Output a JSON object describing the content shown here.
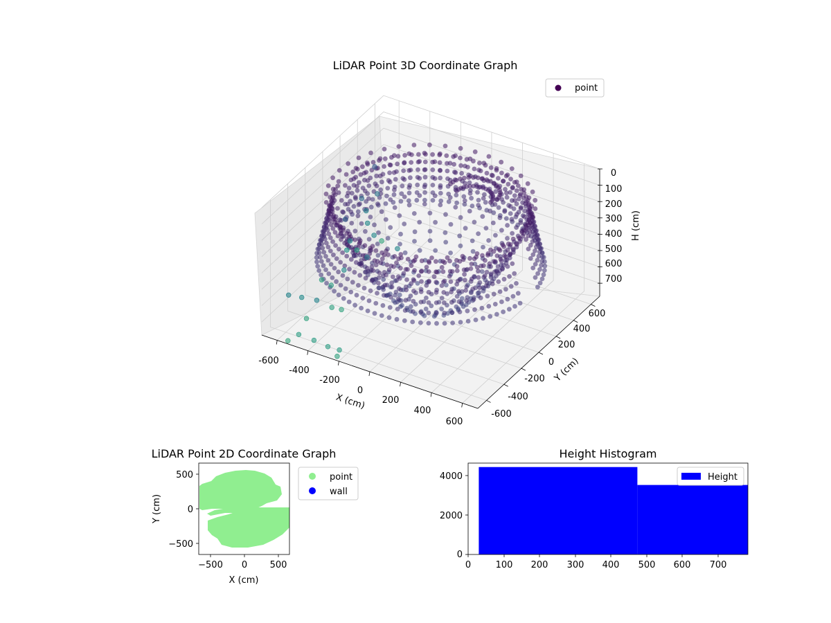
{
  "chart_data": [
    {
      "type": "scatter3d",
      "title": "LiDAR Point 3D Coordinate Graph",
      "xlabel": "X (cm)",
      "ylabel": "Y (cm)",
      "zlabel": "H (cm)",
      "xticks": [
        "-600",
        "-400",
        "-200",
        "0",
        "200",
        "400",
        "600"
      ],
      "yticks": [
        "-600",
        "-400",
        "-200",
        "0",
        "200",
        "400",
        "600"
      ],
      "zticks": [
        "0",
        "100",
        "200",
        "300",
        "400",
        "500",
        "600",
        "700"
      ],
      "xlim": [
        -700,
        700
      ],
      "ylim": [
        -700,
        700
      ],
      "zlim": [
        780,
        0
      ],
      "zaxis_inverted": true,
      "colormap": "viridis",
      "legend": {
        "entries": [
          "point"
        ],
        "placement": "upper right",
        "marker_color": "#440154"
      },
      "outliers": [
        {
          "x": -560,
          "y": 350,
          "h": 220
        },
        {
          "x": -600,
          "y": 500,
          "h": 760
        },
        {
          "x": -560,
          "y": 380,
          "h": 400
        },
        {
          "x": -590,
          "y": 320,
          "h": 560
        },
        {
          "x": -480,
          "y": 200,
          "h": 540
        },
        {
          "x": -610,
          "y": 340,
          "h": 500
        },
        {
          "x": -300,
          "y": 150,
          "h": 540
        },
        {
          "x": -560,
          "y": 200,
          "h": 340
        },
        {
          "x": -540,
          "y": 30,
          "h": 510
        },
        {
          "x": -600,
          "y": 100,
          "h": 620
        },
        {
          "x": -620,
          "y": 250,
          "h": 700
        },
        {
          "x": -460,
          "y": -180,
          "h": 560
        },
        {
          "x": -300,
          "y": -200,
          "h": 420
        },
        {
          "x": -650,
          "y": -100,
          "h": 720
        },
        {
          "x": -560,
          "y": -150,
          "h": 700
        },
        {
          "x": -480,
          "y": -130,
          "h": 280
        },
        {
          "x": -420,
          "y": -280,
          "h": 740
        },
        {
          "x": -460,
          "y": -320,
          "h": 720
        },
        {
          "x": -540,
          "y": -470,
          "h": 740
        },
        {
          "x": -520,
          "y": -560,
          "h": 560
        },
        {
          "x": -530,
          "y": -700,
          "h": 760
        },
        {
          "x": -400,
          "y": -600,
          "h": 520
        },
        {
          "x": -560,
          "y": -640,
          "h": 520
        },
        {
          "x": -460,
          "y": -700,
          "h": 700
        },
        {
          "x": -350,
          "y": -720,
          "h": 690
        },
        {
          "x": -260,
          "y": -720,
          "h": 700
        },
        {
          "x": -200,
          "y": -720,
          "h": 740
        },
        {
          "x": -180,
          "y": -730,
          "h": 690
        }
      ]
    },
    {
      "type": "scatter",
      "title": "LiDAR Point 2D Coordinate Graph",
      "xlabel": "X (cm)",
      "ylabel": "Y (cm)",
      "xticks": [
        "−500",
        "0",
        "500"
      ],
      "yticks": [
        "−500",
        "0",
        "500"
      ],
      "xlim": [
        -680,
        680
      ],
      "ylim": [
        -590,
        640
      ],
      "series": [
        {
          "name": "point",
          "color": "#90ee90"
        },
        {
          "name": "wall",
          "color": "#0000ff"
        }
      ],
      "legend": {
        "placement": "outside right"
      }
    },
    {
      "type": "histogram",
      "title": "Height Histogram",
      "xticks": [
        "0",
        "100",
        "200",
        "300",
        "400",
        "500",
        "600",
        "700"
      ],
      "yticks": [
        "0",
        "2000",
        "4000"
      ],
      "xlim": [
        0,
        785
      ],
      "ylim": [
        0,
        4600
      ],
      "bins": [
        {
          "start": 30,
          "end": 475,
          "count": 4400
        },
        {
          "start": 475,
          "end": 785,
          "count": 3500
        }
      ],
      "series": [
        {
          "name": "Height",
          "color": "#0000ff"
        }
      ],
      "legend": {
        "placement": "upper right"
      }
    }
  ]
}
